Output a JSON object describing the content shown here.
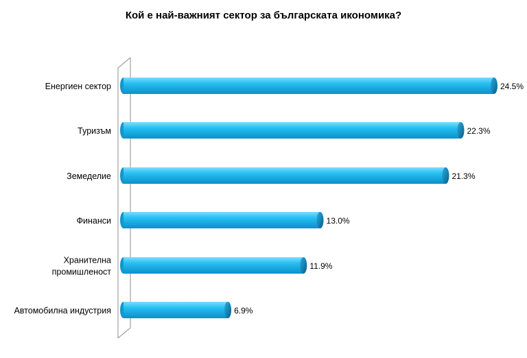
{
  "chart_data": {
    "type": "bar",
    "orientation": "horizontal",
    "title": "Кой е най-важният сектор за българската икономика?",
    "categories": [
      "Енергиен сектор",
      "Туризъм",
      "Земеделие",
      "Финанси",
      "Хранителна промишленост",
      "Автомобилна индустрия"
    ],
    "category_lines": [
      [
        "Енергиен сектор"
      ],
      [
        "Туризъм"
      ],
      [
        "Земеделие"
      ],
      [
        "Финанси"
      ],
      [
        "Хранителна",
        "промишленост"
      ],
      [
        "Автомобилна индустрия"
      ]
    ],
    "values": [
      24.5,
      22.3,
      21.3,
      13.0,
      11.9,
      6.9
    ],
    "value_labels": [
      "24.5%",
      "22.3%",
      "21.3%",
      "13.0%",
      "11.9%",
      "6.9%"
    ],
    "unit": "%",
    "xlabel": "",
    "ylabel": "",
    "xlim": [
      0,
      25
    ],
    "grid": false,
    "legend": "none",
    "bar_color": "#1ab6ea",
    "bar_dark_color": "#0a7fb0"
  }
}
